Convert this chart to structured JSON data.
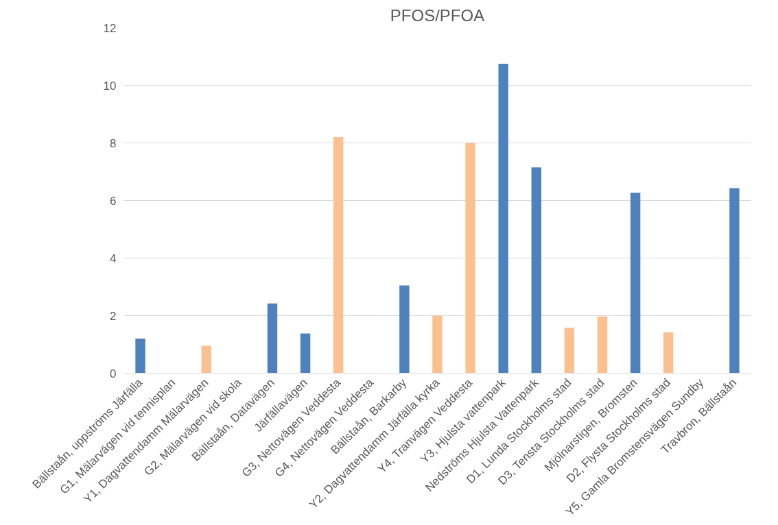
{
  "chart_data": {
    "type": "bar",
    "title": "PFOS/PFOA",
    "categories": [
      "Bällstaån, uppströms Järfälla",
      "G1, Mälarvägen vid tennisplan",
      "Y1, Dagvattendamm Mälarvägen",
      "G2, Mälarvägen vid skola",
      "Bällstaån, Datavägen",
      "Järfällavägen",
      "G3, Nettovägen Veddesta",
      "G4, Nettovägen Veddesta",
      "Bällstaån, Barkarby",
      "Y2, Dagvattendamm Järfälla kyrka",
      "Y4, Tranvägen Veddesta",
      "Y3, Hjulsta vattenpark",
      "Nedströms Hjulsta Vattenpark",
      "D1, Lunda Stockholms stad",
      "D3, Tensta Stockholms stad",
      "Mjölnarstigen, Bromsten",
      "D2, Flysta Stockholms stad",
      "Y5, Gamla Bromstensvägen Sundby",
      "Travbron, Bällstaån"
    ],
    "values": [
      1.2,
      null,
      0.95,
      null,
      2.42,
      1.38,
      8.2,
      null,
      3.05,
      2.0,
      8.0,
      10.75,
      7.15,
      1.58,
      1.97,
      6.27,
      1.42,
      null,
      6.43
    ],
    "colors": [
      "#4f81bd",
      "#4f81bd",
      "#fac090",
      "#4f81bd",
      "#4f81bd",
      "#4f81bd",
      "#fac090",
      "#4f81bd",
      "#4f81bd",
      "#fac090",
      "#fac090",
      "#4f81bd",
      "#4f81bd",
      "#fac090",
      "#fac090",
      "#4f81bd",
      "#fac090",
      "#4f81bd",
      "#4f81bd"
    ],
    "ylim": [
      0,
      12
    ],
    "yticks": [
      0,
      2,
      4,
      6,
      8,
      10,
      12
    ],
    "grid": "y"
  }
}
